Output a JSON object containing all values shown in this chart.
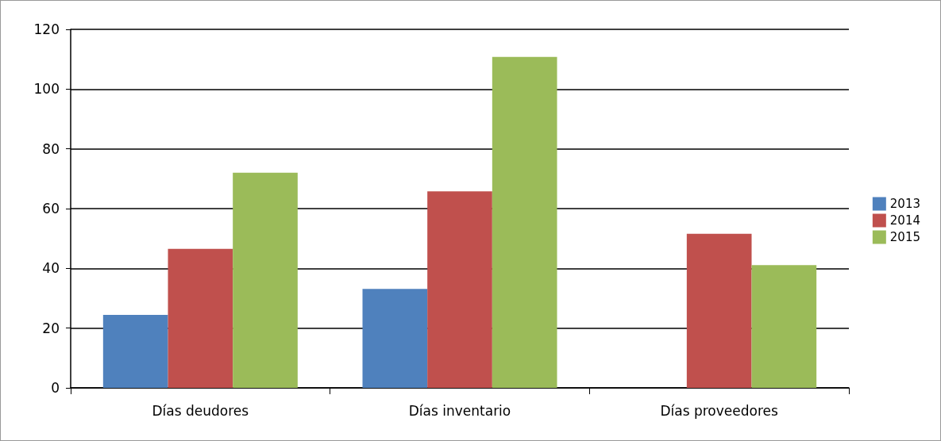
{
  "chart_data": {
    "type": "bar",
    "categories": [
      "Días deudores",
      "Días inventario",
      "Días proveedores"
    ],
    "series": [
      {
        "name": "2013",
        "color": "#4f81bd",
        "values": [
          24.4,
          33.1,
          null
        ]
      },
      {
        "name": "2014",
        "color": "#c0504d",
        "values": [
          46.5,
          65.8,
          51.6
        ]
      },
      {
        "name": "2015",
        "color": "#9bbb59",
        "values": [
          72.0,
          110.8,
          41.1
        ]
      }
    ],
    "ylim": [
      0,
      120
    ],
    "yticks": [
      0,
      20,
      40,
      60,
      80,
      100,
      120
    ],
    "grid": "y",
    "legend": "right"
  }
}
